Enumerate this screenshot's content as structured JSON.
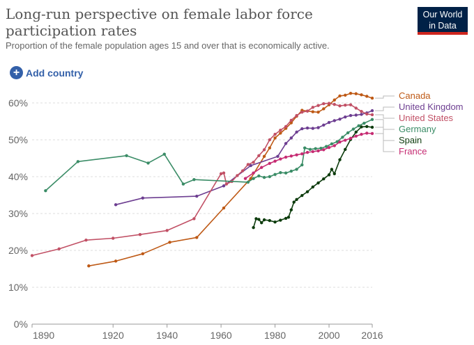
{
  "title": "Long-run perspective on female labor force participation rates",
  "subtitle": "Proportion of the female population ages 15 and over that is economically active.",
  "logo": {
    "line1": "Our World",
    "line2": "in Data"
  },
  "add_country": {
    "label": "Add country"
  },
  "chart_data": {
    "type": "line",
    "title": "Long-run perspective on female labor force participation rates",
    "xlabel": "",
    "ylabel": "",
    "xlim": [
      1890,
      2016
    ],
    "ylim": [
      0,
      60
    ],
    "x_ticks": [
      1890,
      1920,
      1940,
      1960,
      1980,
      2000,
      2016
    ],
    "x_tick_labels": [
      "1890",
      "1920",
      "1940",
      "1960",
      "1980",
      "2000",
      "2016"
    ],
    "y_ticks": [
      0,
      10,
      20,
      30,
      40,
      50,
      60
    ],
    "y_tick_labels": [
      "0%",
      "10%",
      "20%",
      "30%",
      "40%",
      "50%",
      "60%"
    ],
    "grid": "horizontal dashed",
    "legend_position": "right",
    "series": [
      {
        "name": "Canada",
        "color": "#be5915",
        "x": [
          1911,
          1921,
          1931,
          1941,
          1951,
          1961,
          1971,
          1976,
          1978,
          1980,
          1982,
          1984,
          1986,
          1988,
          1990,
          1992,
          1994,
          1996,
          1998,
          2000,
          2002,
          2004,
          2006,
          2008,
          2010,
          2012,
          2014,
          2016
        ],
        "values": [
          15.8,
          17.1,
          19.1,
          22.2,
          23.5,
          31.5,
          39.5,
          45.5,
          47.8,
          50.5,
          51.8,
          53.1,
          54.6,
          56.4,
          58.0,
          57.8,
          57.6,
          57.5,
          58.4,
          59.5,
          60.8,
          61.9,
          62.1,
          62.6,
          62.5,
          62.2,
          61.8,
          61.3
        ]
      },
      {
        "name": "United Kingdom",
        "color": "#6d3e91",
        "x": [
          1921,
          1931,
          1951,
          1961,
          1971,
          1981,
          1984,
          1986,
          1988,
          1990,
          1992,
          1994,
          1996,
          1998,
          2000,
          2002,
          2004,
          2006,
          2008,
          2010,
          2012,
          2014,
          2016
        ],
        "values": [
          32.4,
          34.2,
          34.7,
          37.5,
          43.0,
          45.5,
          49.0,
          50.5,
          52.1,
          53.0,
          53.2,
          53.1,
          53.3,
          54.0,
          54.7,
          55.2,
          55.6,
          56.2,
          56.6,
          56.7,
          56.9,
          57.3,
          57.9
        ]
      },
      {
        "name": "United States",
        "color": "#c15065",
        "x": [
          1890,
          1900,
          1910,
          1920,
          1930,
          1940,
          1950,
          1960,
          1961,
          1962,
          1964,
          1966,
          1968,
          1970,
          1972,
          1974,
          1976,
          1978,
          1980,
          1982,
          1984,
          1986,
          1988,
          1990,
          1992,
          1994,
          1996,
          1998,
          2000,
          2002,
          2004,
          2006,
          2008,
          2010,
          2012,
          2014,
          2016
        ],
        "values": [
          18.6,
          20.4,
          22.8,
          23.3,
          24.3,
          25.4,
          28.6,
          40.8,
          41.0,
          38.0,
          38.7,
          40.3,
          41.6,
          43.3,
          43.9,
          45.7,
          47.3,
          50.0,
          51.5,
          52.6,
          53.6,
          55.3,
          56.6,
          57.5,
          57.8,
          58.8,
          59.3,
          59.8,
          59.9,
          59.6,
          59.2,
          59.4,
          59.5,
          58.6,
          57.7,
          57.0,
          56.8
        ]
      },
      {
        "name": "Germany",
        "color": "#3a8c66",
        "x": [
          1895,
          1907,
          1925,
          1933,
          1939,
          1946,
          1950,
          1970,
          1972,
          1974,
          1976,
          1978,
          1980,
          1982,
          1984,
          1986,
          1988,
          1990,
          1991,
          1993,
          1995,
          1997,
          1999,
          2001,
          2003,
          2005,
          2007,
          2009,
          2011,
          2013,
          2016
        ],
        "values": [
          36.2,
          44.1,
          45.7,
          43.7,
          46.1,
          38.0,
          39.2,
          38.5,
          39.5,
          40.2,
          39.8,
          40.0,
          40.6,
          41.1,
          41.0,
          41.5,
          42.0,
          43.2,
          47.8,
          47.4,
          47.6,
          47.7,
          48.2,
          48.9,
          49.5,
          50.7,
          51.9,
          52.9,
          53.8,
          54.5,
          55.5
        ]
      },
      {
        "name": "Spain",
        "color": "#0c3b0c",
        "x": [
          1972,
          1973,
          1974,
          1975,
          1976,
          1978,
          1980,
          1982,
          1984,
          1985,
          1986,
          1987,
          1988,
          1990,
          1992,
          1994,
          1996,
          1998,
          2000,
          2001,
          2002,
          2004,
          2006,
          2008,
          2010,
          2012,
          2014,
          2016
        ],
        "values": [
          26.2,
          28.6,
          28.4,
          27.5,
          28.3,
          28.1,
          27.7,
          28.2,
          28.7,
          29.0,
          31.0,
          33.1,
          33.8,
          34.9,
          35.9,
          37.2,
          38.3,
          39.4,
          40.5,
          42.0,
          40.8,
          44.6,
          47.4,
          50.1,
          52.1,
          53.5,
          53.6,
          53.4
        ]
      },
      {
        "name": "France",
        "color": "#c62c73",
        "x": [
          1969,
          1972,
          1975,
          1978,
          1980,
          1982,
          1984,
          1986,
          1988,
          1990,
          1992,
          1994,
          1996,
          1998,
          2000,
          2002,
          2004,
          2006,
          2008,
          2010,
          2012,
          2014,
          2016
        ],
        "values": [
          39.5,
          41.0,
          42.5,
          43.6,
          44.2,
          44.8,
          45.3,
          45.6,
          45.9,
          46.2,
          46.6,
          46.8,
          47.0,
          47.3,
          47.9,
          48.4,
          49.4,
          49.9,
          50.4,
          51.0,
          51.5,
          51.8,
          51.7
        ]
      }
    ]
  }
}
